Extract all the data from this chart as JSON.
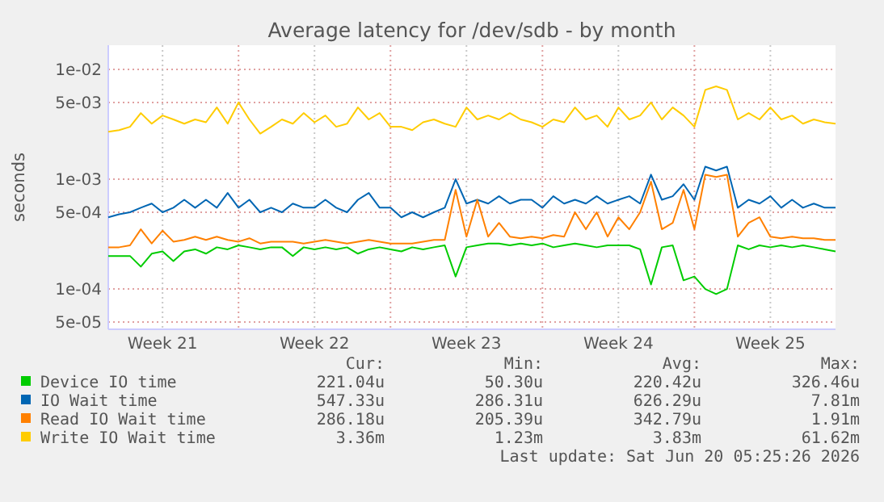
{
  "chart_data": {
    "type": "line",
    "title": "Average latency for /dev/sdb - by month",
    "ylabel": "seconds",
    "log": true,
    "grid": true,
    "legend": "bottom",
    "marker": "none",
    "line_style": "solid",
    "xlim": [
      "2026-05-19T00:00",
      "2026-06-21T12:00"
    ],
    "xticks": [
      {
        "value": "2026-05-21T12:00",
        "label": "Week 21"
      },
      {
        "value": "2026-05-25T00:00",
        "label": null
      },
      {
        "value": "2026-05-28T12:00",
        "label": "Week 22"
      },
      {
        "value": "2026-06-01T00:00",
        "label": null
      },
      {
        "value": "2026-06-04T12:00",
        "label": "Week 23"
      },
      {
        "value": "2026-06-08T00:00",
        "label": null
      },
      {
        "value": "2026-06-11T12:00",
        "label": "Week 24"
      },
      {
        "value": "2026-06-15T00:00",
        "label": null
      },
      {
        "value": "2026-06-18T12:00",
        "label": "Week 25"
      }
    ],
    "ylim": [
      4.3e-05,
      0.0166
    ],
    "yticks": [
      {
        "value": 5e-05,
        "label": "5e-05"
      },
      {
        "value": 0.0001,
        "label": "1e-04"
      },
      {
        "value": 0.0005,
        "label": "5e-04"
      },
      {
        "value": 0.001,
        "label": "1e-03"
      },
      {
        "value": 0.005,
        "label": "5e-03"
      },
      {
        "value": 0.01,
        "label": "1e-02"
      }
    ],
    "x": [
      "2026-05-19T00:00",
      "2026-05-19T12:00",
      "2026-05-20T00:00",
      "2026-05-20T12:00",
      "2026-05-21T00:00",
      "2026-05-21T12:00",
      "2026-05-22T00:00",
      "2026-05-22T12:00",
      "2026-05-23T00:00",
      "2026-05-23T12:00",
      "2026-05-24T00:00",
      "2026-05-24T12:00",
      "2026-05-25T00:00",
      "2026-05-25T12:00",
      "2026-05-26T00:00",
      "2026-05-26T12:00",
      "2026-05-27T00:00",
      "2026-05-27T12:00",
      "2026-05-28T00:00",
      "2026-05-28T12:00",
      "2026-05-29T00:00",
      "2026-05-29T12:00",
      "2026-05-30T00:00",
      "2026-05-30T12:00",
      "2026-05-31T00:00",
      "2026-05-31T12:00",
      "2026-06-01T00:00",
      "2026-06-01T12:00",
      "2026-06-02T00:00",
      "2026-06-02T12:00",
      "2026-06-03T00:00",
      "2026-06-03T12:00",
      "2026-06-04T00:00",
      "2026-06-04T12:00",
      "2026-06-05T00:00",
      "2026-06-05T12:00",
      "2026-06-06T00:00",
      "2026-06-06T12:00",
      "2026-06-07T00:00",
      "2026-06-07T12:00",
      "2026-06-08T00:00",
      "2026-06-08T12:00",
      "2026-06-09T00:00",
      "2026-06-09T12:00",
      "2026-06-10T00:00",
      "2026-06-10T12:00",
      "2026-06-11T00:00",
      "2026-06-11T12:00",
      "2026-06-12T00:00",
      "2026-06-12T12:00",
      "2026-06-13T00:00",
      "2026-06-13T12:00",
      "2026-06-14T00:00",
      "2026-06-14T12:00",
      "2026-06-15T00:00",
      "2026-06-15T12:00",
      "2026-06-16T00:00",
      "2026-06-16T12:00",
      "2026-06-17T00:00",
      "2026-06-17T12:00",
      "2026-06-18T00:00",
      "2026-06-18T12:00",
      "2026-06-19T00:00",
      "2026-06-19T12:00",
      "2026-06-20T00:00",
      "2026-06-20T12:00",
      "2026-06-21T00:00",
      "2026-06-21T12:00"
    ],
    "series": [
      {
        "name": "Device IO time",
        "color": "#00cc00",
        "values": [
          0.0002,
          0.0002,
          0.0002,
          0.00016,
          0.00021,
          0.00022,
          0.00018,
          0.00022,
          0.00023,
          0.00021,
          0.00024,
          0.00023,
          0.00025,
          0.00024,
          0.00023,
          0.00024,
          0.00024,
          0.0002,
          0.00024,
          0.00023,
          0.00024,
          0.00023,
          0.00024,
          0.00021,
          0.00023,
          0.00024,
          0.00023,
          0.00022,
          0.00024,
          0.00023,
          0.00024,
          0.00025,
          0.00013,
          0.00024,
          0.00025,
          0.00026,
          0.00026,
          0.00025,
          0.00026,
          0.00025,
          0.00026,
          0.00024,
          0.00025,
          0.00026,
          0.00025,
          0.00024,
          0.00025,
          0.00025,
          0.00025,
          0.00023,
          0.00011,
          0.00024,
          0.00025,
          0.00012,
          0.00013,
          0.0001,
          9e-05,
          0.0001,
          0.00025,
          0.00023,
          0.00025,
          0.00024,
          0.00025,
          0.00024,
          0.00025,
          0.00024,
          0.00023,
          0.00022
        ]
      },
      {
        "name": "IO Wait time",
        "color": "#0066b3",
        "values": [
          0.00045,
          0.00048,
          0.0005,
          0.00055,
          0.0006,
          0.0005,
          0.00055,
          0.00065,
          0.00055,
          0.00065,
          0.00055,
          0.00075,
          0.00055,
          0.00065,
          0.0005,
          0.00055,
          0.0005,
          0.0006,
          0.00055,
          0.00055,
          0.00065,
          0.00055,
          0.0005,
          0.00065,
          0.00075,
          0.00055,
          0.00055,
          0.00045,
          0.0005,
          0.00045,
          0.0005,
          0.00055,
          0.001,
          0.0006,
          0.00065,
          0.0006,
          0.0007,
          0.0006,
          0.00065,
          0.00065,
          0.00055,
          0.0007,
          0.0006,
          0.00065,
          0.0006,
          0.0007,
          0.0006,
          0.00065,
          0.0007,
          0.0006,
          0.0011,
          0.00065,
          0.0007,
          0.0009,
          0.00065,
          0.0013,
          0.0012,
          0.0013,
          0.00055,
          0.00065,
          0.0006,
          0.0007,
          0.00055,
          0.00065,
          0.00055,
          0.0006,
          0.00055,
          0.00055
        ]
      },
      {
        "name": "Read IO Wait time",
        "color": "#ff8000",
        "values": [
          0.00024,
          0.00024,
          0.00025,
          0.00035,
          0.00026,
          0.00034,
          0.00027,
          0.00028,
          0.0003,
          0.00028,
          0.0003,
          0.00028,
          0.00027,
          0.00029,
          0.00026,
          0.00027,
          0.00027,
          0.00027,
          0.00026,
          0.00027,
          0.00028,
          0.00027,
          0.00026,
          0.00027,
          0.00028,
          0.00027,
          0.00026,
          0.00026,
          0.00026,
          0.00027,
          0.00028,
          0.00028,
          0.0008,
          0.0003,
          0.00065,
          0.0003,
          0.0004,
          0.0003,
          0.00029,
          0.0003,
          0.00029,
          0.00031,
          0.0003,
          0.0005,
          0.00035,
          0.0005,
          0.0003,
          0.00045,
          0.00035,
          0.0005,
          0.00095,
          0.00035,
          0.0004,
          0.0008,
          0.00035,
          0.0011,
          0.00105,
          0.0011,
          0.0003,
          0.0004,
          0.00045,
          0.0003,
          0.00029,
          0.0003,
          0.00029,
          0.00029,
          0.00028,
          0.00028
        ]
      },
      {
        "name": "Write IO Wait time",
        "color": "#ffcc00",
        "values": [
          0.0027,
          0.0028,
          0.003,
          0.004,
          0.0032,
          0.0038,
          0.0035,
          0.0032,
          0.0035,
          0.0033,
          0.0045,
          0.0032,
          0.005,
          0.0035,
          0.0026,
          0.003,
          0.0035,
          0.0032,
          0.004,
          0.0033,
          0.0038,
          0.003,
          0.0032,
          0.0045,
          0.0035,
          0.004,
          0.003,
          0.003,
          0.0028,
          0.0033,
          0.0035,
          0.0032,
          0.003,
          0.0045,
          0.0035,
          0.0038,
          0.0035,
          0.004,
          0.0035,
          0.0033,
          0.003,
          0.0035,
          0.0033,
          0.0045,
          0.0035,
          0.0038,
          0.003,
          0.0045,
          0.0035,
          0.0038,
          0.005,
          0.0035,
          0.0045,
          0.0038,
          0.003,
          0.0065,
          0.007,
          0.0065,
          0.0035,
          0.004,
          0.0035,
          0.0045,
          0.0035,
          0.0038,
          0.0032,
          0.0035,
          0.0033,
          0.0032
        ]
      }
    ],
    "annotations": [
      "Cur:",
      "Min:",
      "Avg:",
      "Max:",
      "221.04u",
      "50.30u",
      "220.42u",
      "326.46u",
      "547.33u",
      "286.31u",
      "626.29u",
      "7.81m",
      "286.18u",
      "205.39u",
      "342.79u",
      "1.91m",
      "3.36m",
      "1.23m",
      "3.83m",
      "61.62m",
      "Last update: Sat Jun 20 05:25:26 2026"
    ]
  }
}
